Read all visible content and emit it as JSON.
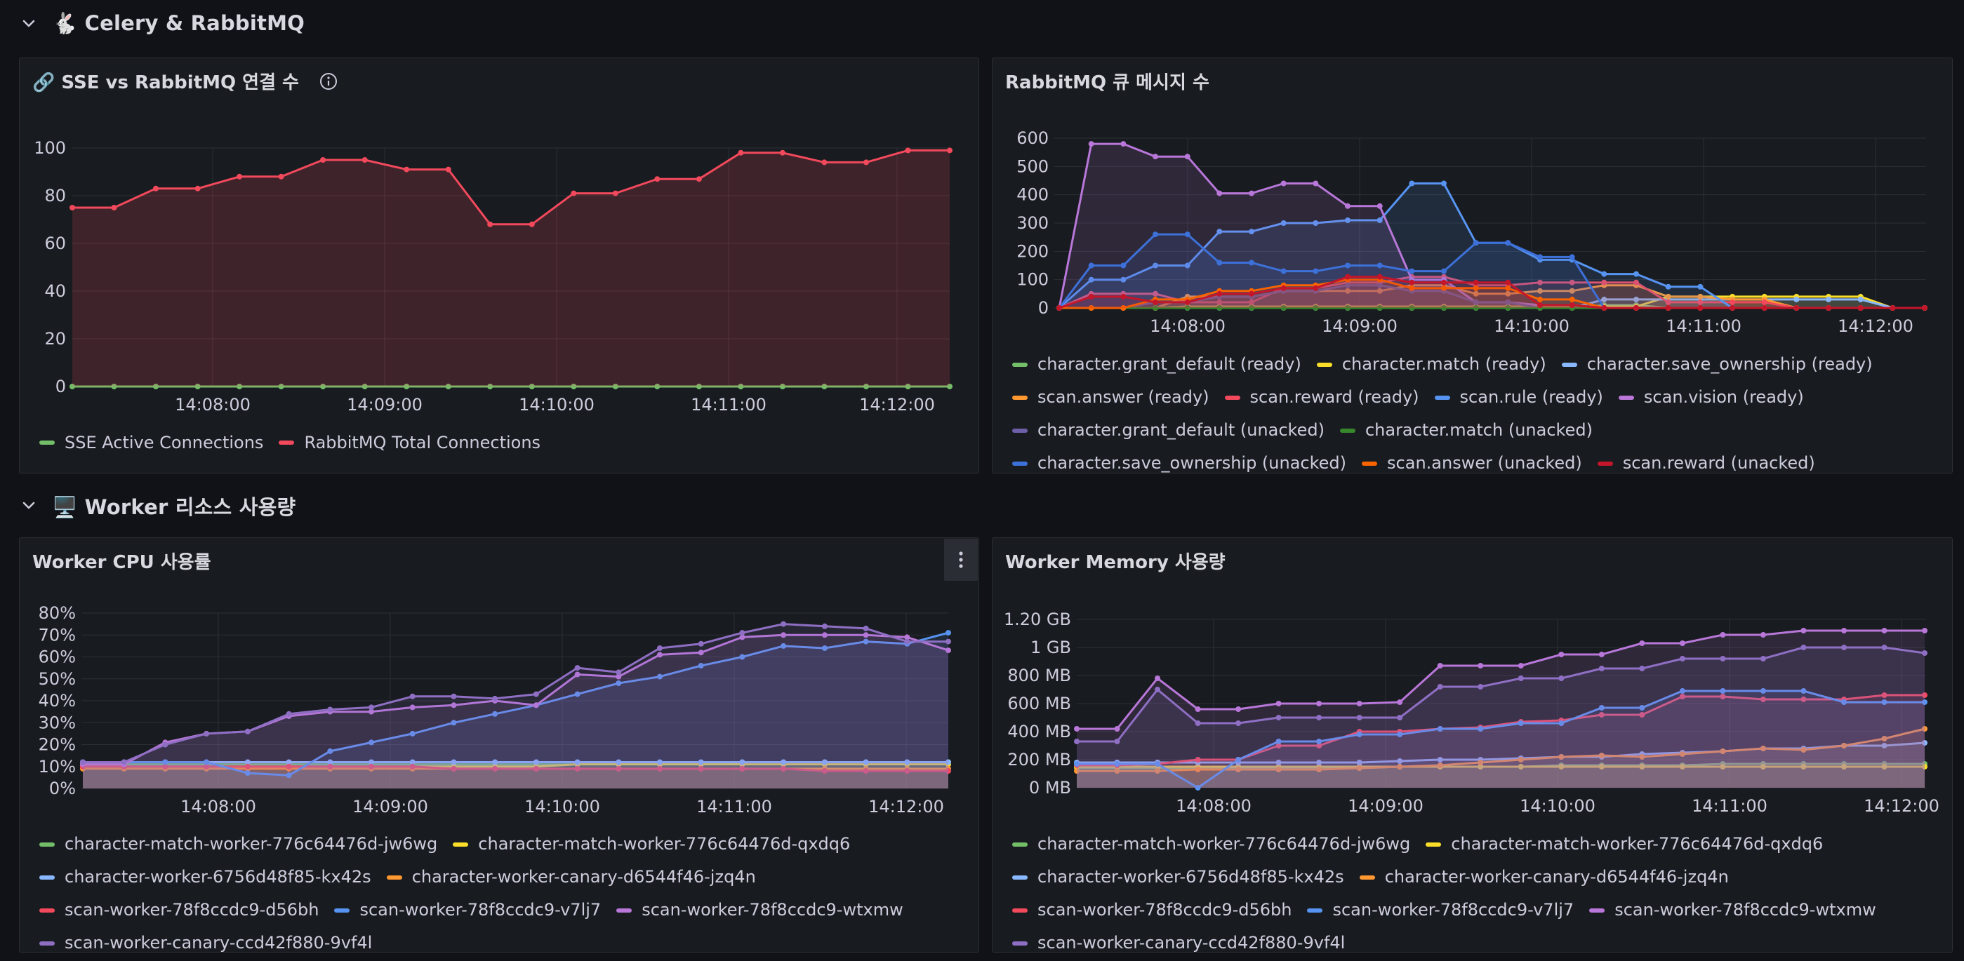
{
  "rows": {
    "celery": {
      "title": "🐇 Celery & RabbitMQ"
    },
    "worker": {
      "title": "🖥️ Worker 리소스 사용량"
    }
  },
  "panels": {
    "sse": {
      "title": "🔗 SSE vs RabbitMQ 연결 수"
    },
    "queue": {
      "title": "RabbitMQ 큐 메시지 수"
    },
    "cpu": {
      "title": "Worker CPU 사용률"
    },
    "mem": {
      "title": "Worker Memory 사용량"
    }
  },
  "chart_data": [
    {
      "id": "sse",
      "type": "area",
      "title": "🔗 SSE vs RabbitMQ 연결 수",
      "ylim": [
        0,
        100
      ],
      "yticks": [
        "0",
        "20",
        "40",
        "60",
        "80",
        "100"
      ],
      "xticks": [
        "14:08:00",
        "14:09:00",
        "14:10:00",
        "14:11:00",
        "14:12:00"
      ],
      "grid": true,
      "legend_placement": "bottom",
      "series": [
        {
          "name": "SSE Active Connections",
          "color": "#73bf69",
          "values": [
            0,
            0,
            0,
            0,
            0,
            0,
            0,
            0,
            0,
            0,
            0,
            0,
            0,
            0,
            0,
            0,
            0,
            0,
            0,
            0,
            0,
            0
          ]
        },
        {
          "name": "RabbitMQ Total Connections",
          "color": "#f2495c",
          "values": [
            75,
            75,
            83,
            83,
            88,
            88,
            95,
            95,
            91,
            91,
            68,
            68,
            81,
            81,
            87,
            87,
            98,
            98,
            94,
            94,
            99,
            99
          ]
        }
      ]
    },
    {
      "id": "queue",
      "type": "area",
      "title": "RabbitMQ 큐 메시지 수",
      "ylim": [
        0,
        600
      ],
      "yticks": [
        "0",
        "100",
        "200",
        "300",
        "400",
        "500",
        "600"
      ],
      "xticks": [
        "14:08:00",
        "14:09:00",
        "14:10:00",
        "14:11:00",
        "14:12:00"
      ],
      "grid": true,
      "legend_placement": "bottom",
      "series": [
        {
          "name": "character.grant_default (ready)",
          "color": "#73bf69",
          "values": [
            0,
            0,
            0,
            0,
            0,
            0,
            0,
            0,
            0,
            0,
            0,
            0,
            0,
            0,
            0,
            0,
            0,
            10,
            10,
            0,
            0,
            0,
            0,
            0,
            0,
            0,
            0,
            0
          ]
        },
        {
          "name": "character.match (ready)",
          "color": "#fade2a",
          "values": [
            0,
            0,
            0,
            0,
            5,
            5,
            5,
            5,
            5,
            5,
            5,
            5,
            5,
            5,
            5,
            5,
            5,
            5,
            5,
            40,
            40,
            40,
            40,
            40,
            40,
            40,
            0,
            0
          ]
        },
        {
          "name": "character.save_ownership (ready)",
          "color": "#8ab8ff",
          "values": [
            0,
            0,
            0,
            0,
            0,
            0,
            0,
            0,
            0,
            0,
            0,
            0,
            0,
            0,
            0,
            0,
            0,
            30,
            30,
            30,
            30,
            30,
            30,
            30,
            30,
            30,
            0,
            0
          ]
        },
        {
          "name": "scan.answer (ready)",
          "color": "#ff9830",
          "values": [
            0,
            0,
            0,
            0,
            40,
            40,
            40,
            60,
            60,
            60,
            60,
            80,
            80,
            50,
            50,
            60,
            60,
            80,
            80,
            40,
            40,
            30,
            30,
            0,
            0,
            0,
            0,
            0
          ]
        },
        {
          "name": "scan.reward (ready)",
          "color": "#f2495c",
          "values": [
            0,
            50,
            50,
            50,
            20,
            20,
            20,
            70,
            70,
            90,
            90,
            110,
            110,
            80,
            80,
            90,
            90,
            90,
            90,
            20,
            20,
            20,
            20,
            0,
            0,
            0,
            0,
            0
          ]
        },
        {
          "name": "scan.rule (ready)",
          "color": "#5794f2",
          "values": [
            0,
            100,
            100,
            150,
            150,
            270,
            270,
            300,
            300,
            310,
            310,
            440,
            440,
            230,
            230,
            170,
            170,
            120,
            120,
            75,
            75,
            0,
            0,
            0,
            0,
            0,
            0,
            0
          ]
        },
        {
          "name": "scan.vision (ready)",
          "color": "#b877d9",
          "values": [
            0,
            580,
            580,
            535,
            535,
            405,
            405,
            440,
            440,
            360,
            360,
            100,
            100,
            20,
            20,
            10,
            10,
            0,
            0,
            0,
            0,
            0,
            0,
            0,
            0,
            0,
            0,
            0
          ]
        },
        {
          "name": "character.grant_default (unacked)",
          "color": "#6d5fa8",
          "values": [
            0,
            0,
            0,
            20,
            20,
            40,
            40,
            60,
            60,
            80,
            80,
            60,
            60,
            20,
            20,
            0,
            0,
            0,
            0,
            0,
            0,
            0,
            0,
            0,
            0,
            0,
            0,
            0
          ]
        },
        {
          "name": "character.match (unacked)",
          "color": "#37872d",
          "values": [
            0,
            0,
            0,
            0,
            0,
            0,
            0,
            0,
            0,
            0,
            0,
            0,
            0,
            0,
            0,
            0,
            0,
            0,
            0,
            0,
            0,
            0,
            0,
            0,
            0,
            0,
            0,
            0
          ]
        },
        {
          "name": "character.save_ownership (unacked)",
          "color": "#3d71d9",
          "values": [
            0,
            150,
            150,
            260,
            260,
            160,
            160,
            130,
            130,
            150,
            150,
            130,
            130,
            230,
            230,
            180,
            180,
            0,
            0,
            0,
            0,
            0,
            0,
            0,
            0,
            0,
            0,
            0
          ]
        },
        {
          "name": "scan.answer (unacked)",
          "color": "#fa6400",
          "values": [
            0,
            0,
            0,
            30,
            30,
            60,
            60,
            80,
            80,
            100,
            100,
            70,
            70,
            70,
            70,
            30,
            30,
            0,
            0,
            0,
            0,
            0,
            0,
            0,
            0,
            0,
            0,
            0
          ]
        },
        {
          "name": "scan.reward (unacked)",
          "color": "#c4162a",
          "values": [
            0,
            40,
            40,
            20,
            20,
            50,
            50,
            70,
            70,
            110,
            110,
            90,
            90,
            90,
            90,
            10,
            10,
            0,
            0,
            0,
            0,
            0,
            0,
            0,
            0,
            0,
            0,
            0
          ]
        }
      ]
    },
    {
      "id": "cpu",
      "type": "area",
      "title": "Worker CPU 사용률",
      "ylim": [
        0,
        80
      ],
      "yticks": [
        "0%",
        "10%",
        "20%",
        "30%",
        "40%",
        "50%",
        "60%",
        "70%",
        "80%"
      ],
      "xticks": [
        "14:08:00",
        "14:09:00",
        "14:10:00",
        "14:11:00",
        "14:12:00"
      ],
      "grid": true,
      "legend_placement": "bottom",
      "series": [
        {
          "name": "character-match-worker-776c64476d-jw6wg",
          "color": "#73bf69",
          "values": [
            11,
            11,
            11,
            11,
            11,
            11,
            11,
            11,
            11,
            11,
            11,
            11,
            11,
            11,
            11,
            11,
            12,
            12,
            12,
            12,
            12,
            12
          ]
        },
        {
          "name": "character-match-worker-776c64476d-qxdq6",
          "color": "#fade2a",
          "values": [
            10,
            10,
            10,
            10,
            10,
            10,
            10,
            10,
            10,
            10,
            10,
            10,
            11,
            11,
            11,
            11,
            11,
            11,
            11,
            11,
            11,
            11
          ]
        },
        {
          "name": "character-worker-6756d48f85-kx42s",
          "color": "#8ab8ff",
          "values": [
            12,
            12,
            12,
            12,
            12,
            12,
            12,
            12,
            12,
            12,
            12,
            12,
            12,
            12,
            12,
            12,
            12,
            12,
            12,
            12,
            12,
            12
          ]
        },
        {
          "name": "character-worker-canary-d6544f46-jzq4n",
          "color": "#ff9830",
          "values": [
            9,
            9,
            9,
            9,
            9,
            9,
            9,
            9,
            9,
            9,
            9,
            9,
            9,
            9,
            9,
            9,
            9,
            9,
            9,
            9,
            9,
            9
          ]
        },
        {
          "name": "scan-worker-78f8ccdc9-d56bh",
          "color": "#f2495c",
          "values": [
            10,
            10,
            10,
            10,
            10,
            10,
            10,
            10,
            10,
            9,
            9,
            9,
            9,
            9,
            9,
            9,
            9,
            9,
            8,
            8,
            8,
            8
          ]
        },
        {
          "name": "scan-worker-78f8ccdc9-v7lj7",
          "color": "#5794f2",
          "values": [
            12,
            12,
            12,
            12,
            7,
            6,
            17,
            21,
            25,
            30,
            34,
            38,
            43,
            48,
            51,
            56,
            60,
            65,
            64,
            67,
            66,
            71
          ]
        },
        {
          "name": "scan-worker-78f8ccdc9-wtxmw",
          "color": "#b877d9",
          "values": [
            11,
            11,
            21,
            25,
            26,
            33,
            35,
            35,
            37,
            38,
            40,
            38,
            52,
            51,
            61,
            62,
            69,
            70,
            70,
            70,
            69,
            63
          ]
        },
        {
          "name": "scan-worker-canary-ccd42f880-9vf4l",
          "color": "#8f6fc4",
          "values": [
            12,
            12,
            20,
            25,
            26,
            34,
            36,
            37,
            42,
            42,
            41,
            43,
            55,
            53,
            64,
            66,
            71,
            75,
            74,
            73,
            67,
            67
          ]
        }
      ]
    },
    {
      "id": "mem",
      "type": "area",
      "title": "Worker Memory 사용량",
      "ylim": [
        0,
        1.2
      ],
      "yticks": [
        "0 MB",
        "200 MB",
        "400 MB",
        "600 MB",
        "800 MB",
        "1 GB",
        "1.20 GB"
      ],
      "xticks": [
        "14:08:00",
        "14:09:00",
        "14:10:00",
        "14:11:00",
        "14:12:00"
      ],
      "grid": true,
      "legend_placement": "bottom",
      "series": [
        {
          "name": "character-match-worker-776c64476d-jw6wg",
          "color": "#73bf69",
          "values": [
            0.14,
            0.14,
            0.14,
            0.14,
            0.14,
            0.14,
            0.14,
            0.14,
            0.15,
            0.15,
            0.15,
            0.15,
            0.16,
            0.16,
            0.16,
            0.16,
            0.17,
            0.17,
            0.17,
            0.17,
            0.17,
            0.17
          ]
        },
        {
          "name": "character-match-worker-776c64476d-qxdq6",
          "color": "#fade2a",
          "values": [
            0.15,
            0.15,
            0.15,
            0.15,
            0.15,
            0.15,
            0.15,
            0.15,
            0.15,
            0.15,
            0.15,
            0.15,
            0.15,
            0.15,
            0.15,
            0.15,
            0.15,
            0.15,
            0.15,
            0.15,
            0.15,
            0.15
          ]
        },
        {
          "name": "character-worker-6756d48f85-kx42s",
          "color": "#8ab8ff",
          "values": [
            0.18,
            0.18,
            0.18,
            0.18,
            0.18,
            0.18,
            0.18,
            0.18,
            0.19,
            0.2,
            0.2,
            0.21,
            0.22,
            0.22,
            0.24,
            0.25,
            0.26,
            0.28,
            0.28,
            0.3,
            0.3,
            0.32
          ]
        },
        {
          "name": "character-worker-canary-d6544f46-jzq4n",
          "color": "#ff9830",
          "values": [
            0.12,
            0.12,
            0.12,
            0.13,
            0.13,
            0.13,
            0.13,
            0.14,
            0.15,
            0.16,
            0.18,
            0.2,
            0.22,
            0.23,
            0.22,
            0.24,
            0.26,
            0.28,
            0.27,
            0.3,
            0.35,
            0.42
          ]
        },
        {
          "name": "scan-worker-78f8ccdc9-d56bh",
          "color": "#f2495c",
          "values": [
            0.16,
            0.16,
            0.17,
            0.2,
            0.2,
            0.3,
            0.3,
            0.4,
            0.4,
            0.42,
            0.43,
            0.47,
            0.48,
            0.52,
            0.52,
            0.65,
            0.65,
            0.63,
            0.63,
            0.63,
            0.66,
            0.66
          ]
        },
        {
          "name": "scan-worker-78f8ccdc9-v7lj7",
          "color": "#5794f2",
          "values": [
            0.17,
            0.17,
            0.17,
            0.0,
            0.2,
            0.33,
            0.33,
            0.38,
            0.38,
            0.42,
            0.42,
            0.46,
            0.46,
            0.57,
            0.57,
            0.69,
            0.69,
            0.69,
            0.69,
            0.61,
            0.61,
            0.61
          ]
        },
        {
          "name": "scan-worker-78f8ccdc9-wtxmw",
          "color": "#b877d9",
          "values": [
            0.42,
            0.42,
            0.78,
            0.56,
            0.56,
            0.6,
            0.6,
            0.6,
            0.61,
            0.87,
            0.87,
            0.87,
            0.95,
            0.95,
            1.03,
            1.03,
            1.09,
            1.09,
            1.12,
            1.12,
            1.12,
            1.12
          ]
        },
        {
          "name": "scan-worker-canary-ccd42f880-9vf4l",
          "color": "#8f6fc4",
          "values": [
            0.33,
            0.33,
            0.7,
            0.46,
            0.46,
            0.5,
            0.5,
            0.5,
            0.5,
            0.72,
            0.72,
            0.78,
            0.78,
            0.85,
            0.85,
            0.92,
            0.92,
            0.92,
            1.0,
            1.0,
            1.0,
            0.96
          ]
        }
      ]
    }
  ]
}
